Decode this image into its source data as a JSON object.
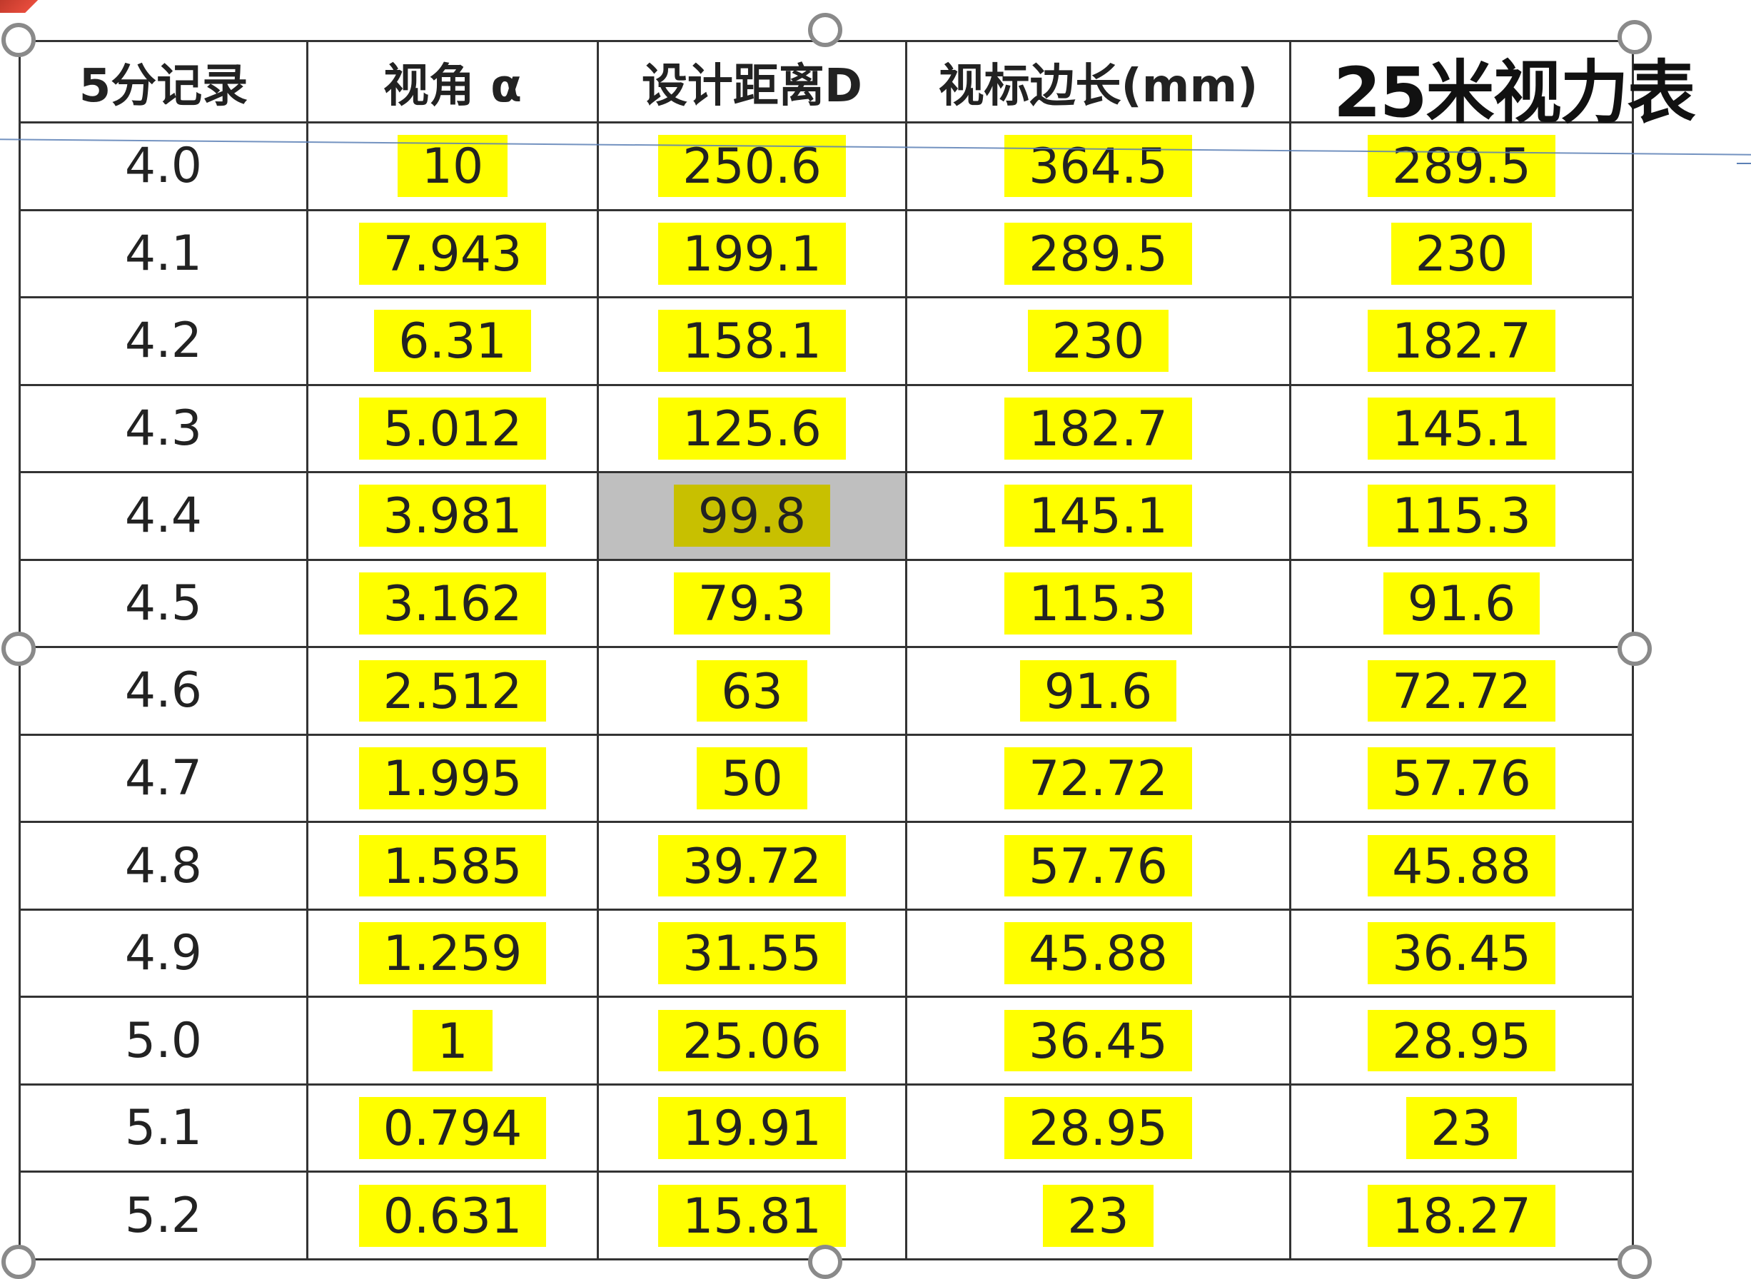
{
  "table": {
    "headers": [
      "5分记录",
      "视角 α",
      "设计距离D",
      "视标边长(mm)",
      "25米视力表"
    ],
    "rows": [
      [
        "4.0",
        "10",
        "250.6",
        "364.5",
        "289.5"
      ],
      [
        "4.1",
        "7.943",
        "199.1",
        "289.5",
        "230"
      ],
      [
        "4.2",
        "6.31",
        "158.1",
        "230",
        "182.7"
      ],
      [
        "4.3",
        "5.012",
        "125.6",
        "182.7",
        "145.1"
      ],
      [
        "4.4",
        "3.981",
        "99.8",
        "145.1",
        "115.3"
      ],
      [
        "4.5",
        "3.162",
        "79.3",
        "115.3",
        "91.6"
      ],
      [
        "4.6",
        "2.512",
        "63",
        "91.6",
        "72.72"
      ],
      [
        "4.7",
        "1.995",
        "50",
        "72.72",
        "57.76"
      ],
      [
        "4.8",
        "1.585",
        "39.72",
        "57.76",
        "45.88"
      ],
      [
        "4.9",
        "1.259",
        "31.55",
        "45.88",
        "36.45"
      ],
      [
        "5.0",
        "1",
        "25.06",
        "36.45",
        "28.95"
      ],
      [
        "5.1",
        "0.794",
        "19.91",
        "28.95",
        "23"
      ],
      [
        "5.2",
        "0.631",
        "15.81",
        "23",
        "18.27"
      ]
    ]
  },
  "colors": {
    "highlight": "#ffff00",
    "selected_cell": "#bfbfbf",
    "grid": "#333333",
    "handle": "#8a8a8a",
    "guide_line": "#5b7fb5"
  },
  "icons": {
    "resize_handle": "resize-handle-icon",
    "corner_mark": "corner-mark-icon"
  }
}
